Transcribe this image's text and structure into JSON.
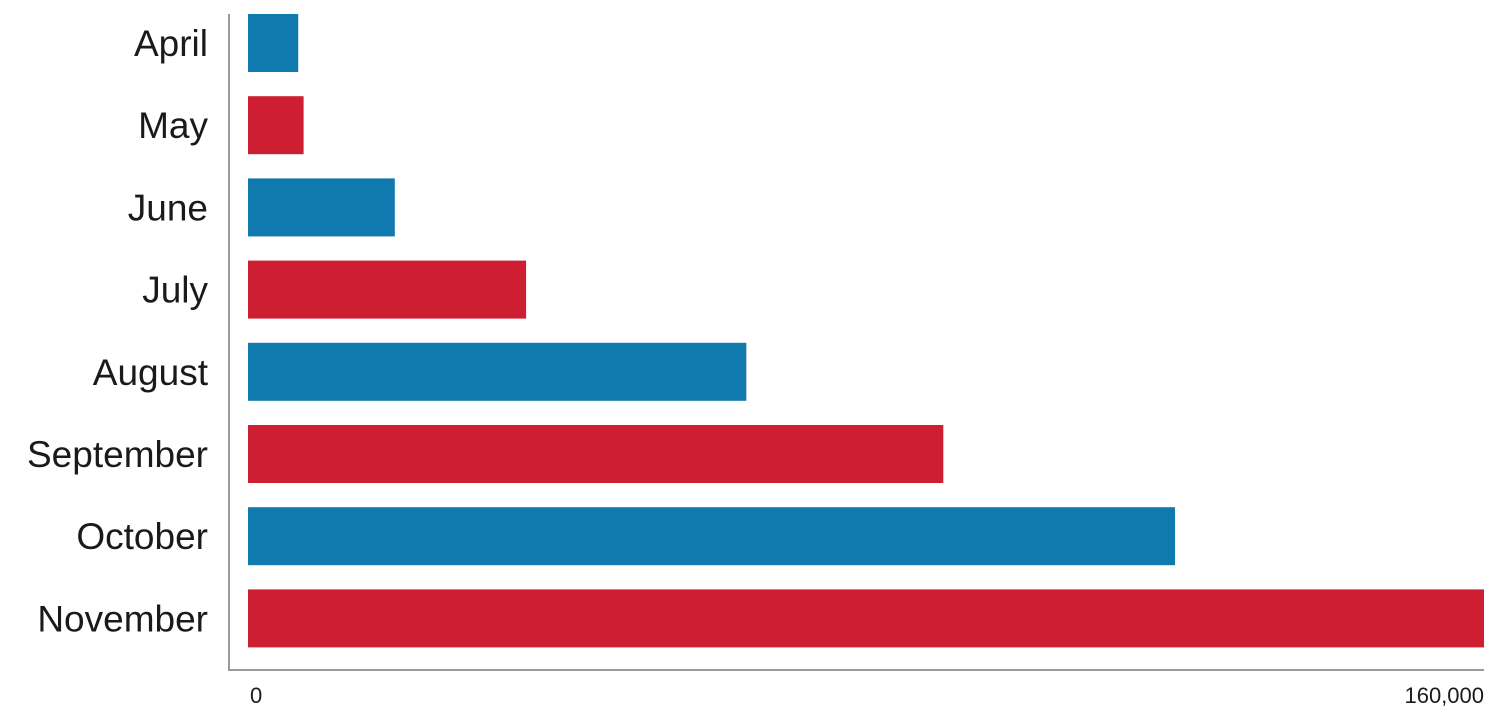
{
  "chart_data": {
    "type": "bar",
    "orientation": "horizontal",
    "categories": [
      "April",
      "May",
      "June",
      "July",
      "August",
      "September",
      "October",
      "November"
    ],
    "values": [
      6500,
      7200,
      19000,
      36000,
      64500,
      90000,
      120000,
      160000
    ],
    "bar_colors": [
      "#1079ae",
      "#cd1f31",
      "#1079ae",
      "#cd1f31",
      "#1079ae",
      "#cd1f31",
      "#1079ae",
      "#cd1f31"
    ],
    "xlim": [
      0,
      160000
    ],
    "x_ticks": [
      {
        "value": 0,
        "label": "0"
      },
      {
        "value": 160000,
        "label": "160,000"
      }
    ],
    "title": "",
    "xlabel": "",
    "ylabel": "",
    "grid": false,
    "legend": "none"
  }
}
